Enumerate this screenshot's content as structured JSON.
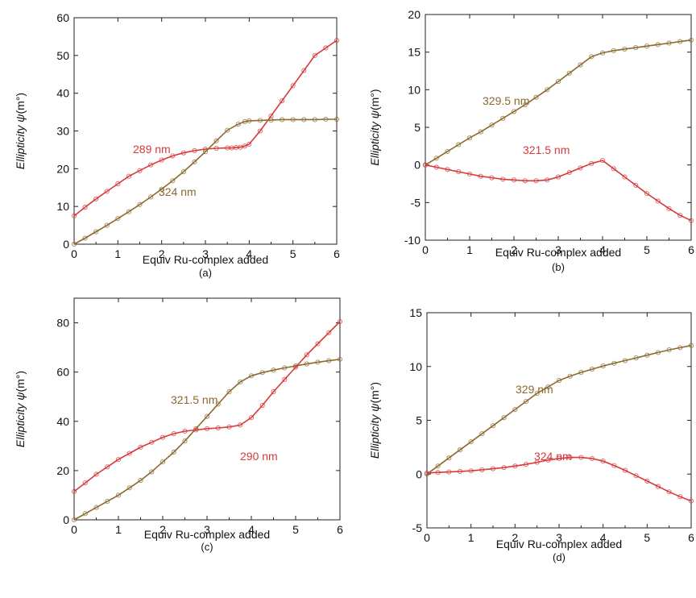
{
  "chart_data": [
    {
      "panel_label": "(a)",
      "type": "line",
      "xlabel": "Equiv Ru-complex added",
      "ylabel_italic": "Ellipticity ψ",
      "ylabel_unit": "(m°)",
      "xlim": [
        0,
        6
      ],
      "ylim": [
        0,
        60
      ],
      "xticks": [
        "0",
        "1",
        "2",
        "3",
        "4",
        "5",
        "6"
      ],
      "yticks": [
        "0",
        "10",
        "20",
        "30",
        "40",
        "50",
        "60"
      ],
      "series": [
        {
          "name": "289 nm",
          "color": "#d63a3a",
          "x": [
            0,
            0.25,
            0.5,
            0.75,
            1,
            1.25,
            1.5,
            1.75,
            2,
            2.25,
            2.5,
            2.75,
            3,
            3.25,
            3.5,
            3.6,
            3.7,
            3.8,
            3.9,
            4.0,
            4.25,
            4.5,
            4.75,
            5,
            5.25,
            5.5,
            5.75,
            6
          ],
          "y": [
            7.5,
            9.8,
            12,
            14,
            16,
            18,
            19.5,
            21,
            22.3,
            23.4,
            24.2,
            24.8,
            25.2,
            25.4,
            25.5,
            25.5,
            25.6,
            25.7,
            26,
            26.5,
            30,
            34,
            38,
            42,
            46,
            50,
            52,
            54
          ]
        },
        {
          "name": "324 nm",
          "color": "#8b6a2e",
          "x": [
            0,
            0.25,
            0.5,
            0.75,
            1,
            1.25,
            1.5,
            1.75,
            2,
            2.25,
            2.5,
            2.75,
            3,
            3.25,
            3.5,
            3.75,
            3.9,
            4.0,
            4.25,
            4.5,
            4.75,
            5,
            5.25,
            5.5,
            5.75,
            6
          ],
          "y": [
            0,
            1.6,
            3.3,
            5,
            6.8,
            8.6,
            10.5,
            12.5,
            14.6,
            16.8,
            19.2,
            21.8,
            24.5,
            27.4,
            30.2,
            31.8,
            32.5,
            32.7,
            32.8,
            32.9,
            33,
            33,
            33,
            33,
            33.1,
            33.1
          ]
        }
      ]
    },
    {
      "panel_label": "(b)",
      "type": "line",
      "xlabel": "Equiv Ru-complex added",
      "ylabel_italic": "Ellipticity ψ",
      "ylabel_unit": "(m°)",
      "xlim": [
        0,
        6
      ],
      "ylim": [
        -10,
        20
      ],
      "xticks": [
        "0",
        "1",
        "2",
        "3",
        "4",
        "5",
        "6"
      ],
      "yticks": [
        "-10",
        "-5",
        "0",
        "5",
        "10",
        "15",
        "20"
      ],
      "series": [
        {
          "name": "329.5 nm",
          "color": "#8b6a2e",
          "x": [
            0,
            0.25,
            0.5,
            0.75,
            1,
            1.25,
            1.5,
            1.75,
            2,
            2.25,
            2.5,
            2.75,
            3,
            3.25,
            3.5,
            3.75,
            4.0,
            4.25,
            4.5,
            4.75,
            5,
            5.25,
            5.5,
            5.75,
            6
          ],
          "y": [
            0,
            0.9,
            1.8,
            2.7,
            3.6,
            4.4,
            5.3,
            6.2,
            7.1,
            8.0,
            9.0,
            10.0,
            11.1,
            12.2,
            13.3,
            14.4,
            14.9,
            15.2,
            15.4,
            15.6,
            15.8,
            16.0,
            16.2,
            16.4,
            16.6
          ]
        },
        {
          "name": "321.5 nm",
          "color": "#d63a3a",
          "x": [
            0,
            0.25,
            0.5,
            0.75,
            1,
            1.25,
            1.5,
            1.75,
            2,
            2.25,
            2.5,
            2.75,
            3,
            3.25,
            3.5,
            3.75,
            4.0,
            4.25,
            4.5,
            4.75,
            5,
            5.25,
            5.5,
            5.75,
            6
          ],
          "y": [
            0,
            -0.3,
            -0.6,
            -0.9,
            -1.2,
            -1.5,
            -1.7,
            -1.9,
            -2.0,
            -2.1,
            -2.1,
            -2.0,
            -1.6,
            -1.0,
            -0.4,
            0.2,
            0.6,
            -0.5,
            -1.6,
            -2.7,
            -3.8,
            -4.8,
            -5.8,
            -6.7,
            -7.4
          ]
        }
      ]
    },
    {
      "panel_label": "(c)",
      "type": "line",
      "xlabel": "Equiv Ru-complex added",
      "ylabel_italic": "Ellipticity ψ",
      "ylabel_unit": "(m°)",
      "xlim": [
        0,
        6
      ],
      "ylim": [
        0,
        90
      ],
      "xticks": [
        "0",
        "1",
        "2",
        "3",
        "4",
        "5",
        "6"
      ],
      "yticks": [
        "0",
        "20",
        "40",
        "60",
        "80"
      ],
      "series": [
        {
          "name": "321.5 nm",
          "color": "#8b6a2e",
          "x": [
            0,
            0.25,
            0.5,
            0.75,
            1,
            1.25,
            1.5,
            1.75,
            2,
            2.25,
            2.5,
            2.75,
            3,
            3.25,
            3.5,
            3.75,
            4.0,
            4.25,
            4.5,
            4.75,
            5,
            5.25,
            5.5,
            5.75,
            6
          ],
          "y": [
            0,
            2.5,
            5,
            7.5,
            10,
            13,
            16,
            19.5,
            23.5,
            27.5,
            32,
            37,
            42,
            47,
            52,
            56,
            58.5,
            59.8,
            60.8,
            61.7,
            62.5,
            63.3,
            64,
            64.6,
            65.2
          ]
        },
        {
          "name": "290 nm",
          "color": "#d63a3a",
          "x": [
            0,
            0.25,
            0.5,
            0.75,
            1,
            1.25,
            1.5,
            1.75,
            2,
            2.25,
            2.5,
            2.75,
            3,
            3.25,
            3.5,
            3.75,
            4.0,
            4.25,
            4.5,
            4.75,
            5,
            5.25,
            5.5,
            5.75,
            6
          ],
          "y": [
            11.5,
            15,
            18.5,
            21.5,
            24.5,
            27,
            29.5,
            31.5,
            33.5,
            35,
            36,
            36.5,
            37,
            37.3,
            37.7,
            38.5,
            41.5,
            46.5,
            52,
            57,
            62,
            67,
            71.5,
            76,
            80.5
          ]
        }
      ]
    },
    {
      "panel_label": "(d)",
      "type": "line",
      "xlabel": "Equiv Ru-complex added",
      "ylabel_italic": "Ellipticity ψ",
      "ylabel_unit": "(m°)",
      "xlim": [
        0,
        6
      ],
      "ylim": [
        -5,
        15
      ],
      "xticks": [
        "0",
        "1",
        "2",
        "3",
        "4",
        "5",
        "6"
      ],
      "yticks": [
        "-5",
        "0",
        "5",
        "10",
        "15"
      ],
      "series": [
        {
          "name": "329 nm",
          "color": "#8b6a2e",
          "x": [
            0,
            0.25,
            0.5,
            0.75,
            1,
            1.25,
            1.5,
            1.75,
            2,
            2.25,
            2.5,
            2.75,
            3,
            3.25,
            3.5,
            3.75,
            4.0,
            4.25,
            4.5,
            4.75,
            5,
            5.25,
            5.5,
            5.75,
            6
          ],
          "y": [
            0,
            0.75,
            1.5,
            2.25,
            3.0,
            3.75,
            4.5,
            5.25,
            6.0,
            6.75,
            7.5,
            8.1,
            8.7,
            9.1,
            9.45,
            9.75,
            10.05,
            10.3,
            10.55,
            10.8,
            11.05,
            11.3,
            11.55,
            11.75,
            11.95
          ]
        },
        {
          "name": "324 nm",
          "color": "#d63a3a",
          "x": [
            0,
            0.25,
            0.5,
            0.75,
            1,
            1.25,
            1.5,
            1.75,
            2,
            2.25,
            2.5,
            2.75,
            3,
            3.25,
            3.5,
            3.75,
            4.0,
            4.25,
            4.5,
            4.75,
            5,
            5.25,
            5.5,
            5.75,
            6
          ],
          "y": [
            0.1,
            0.15,
            0.2,
            0.25,
            0.3,
            0.4,
            0.5,
            0.6,
            0.75,
            0.9,
            1.1,
            1.3,
            1.45,
            1.55,
            1.55,
            1.45,
            1.2,
            0.8,
            0.35,
            -0.15,
            -0.65,
            -1.15,
            -1.65,
            -2.1,
            -2.5
          ]
        }
      ]
    }
  ]
}
